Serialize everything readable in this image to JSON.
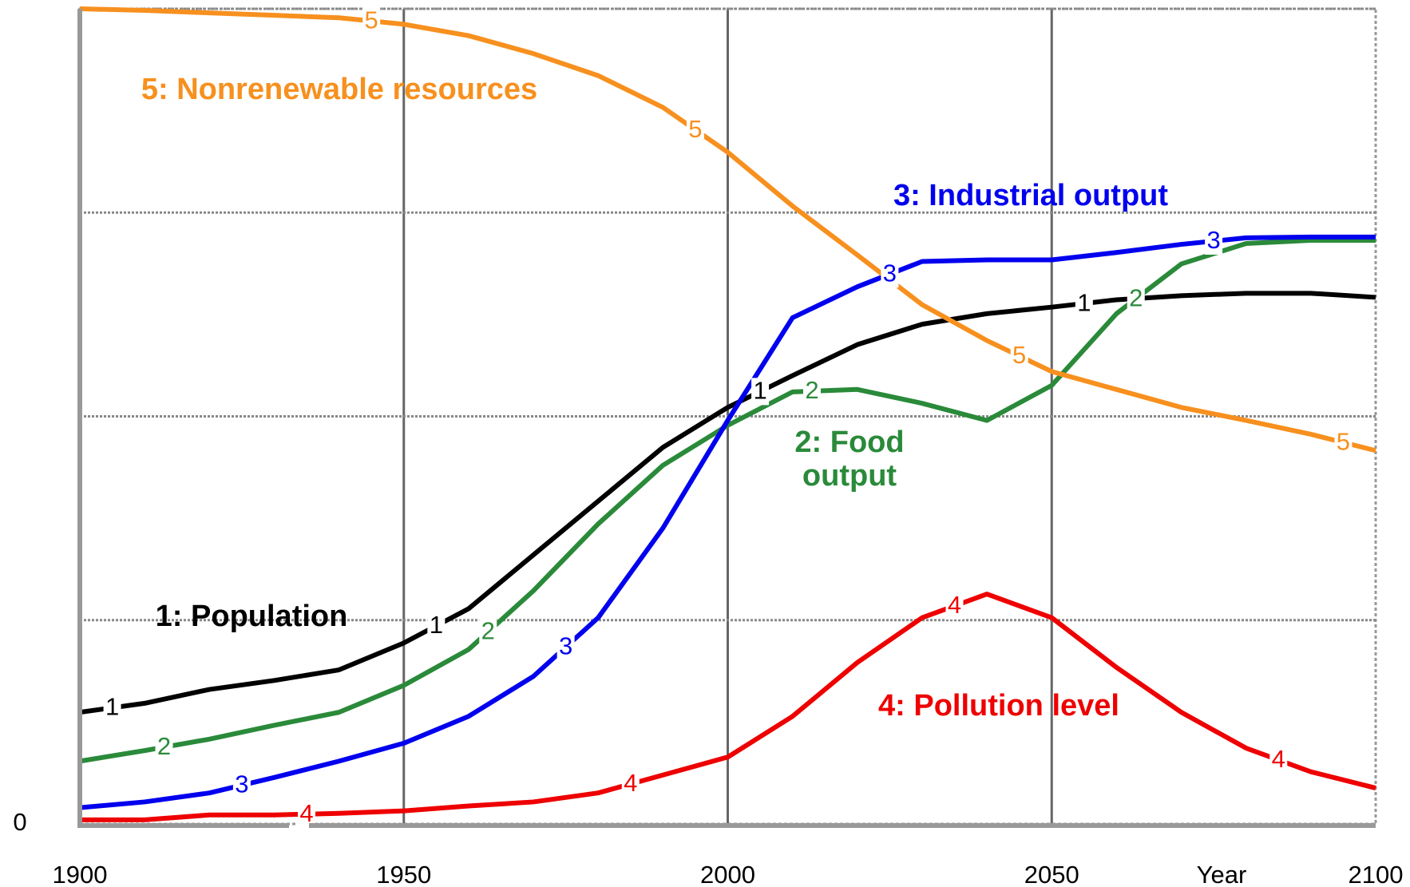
{
  "chart_data": {
    "type": "line",
    "xlabel": "Year",
    "x": [
      1900,
      1910,
      1920,
      1930,
      1940,
      1950,
      1960,
      1970,
      1980,
      1990,
      2000,
      2010,
      2020,
      2030,
      2040,
      2050,
      2060,
      2070,
      2080,
      2090,
      2100
    ],
    "xlim": [
      1900,
      2100
    ],
    "xticks": [
      1900,
      1950,
      2000,
      2050,
      2100
    ],
    "ylim": [
      0,
      100
    ],
    "yticks": [
      0
    ],
    "ygrid": [
      25,
      50,
      75,
      100
    ],
    "grid": true,
    "series": [
      {
        "name": "1: Population",
        "marker": "1",
        "color": "#000000",
        "values": [
          13.7,
          14.8,
          16.5,
          17.6,
          18.9,
          22.2,
          26.4,
          33,
          39.6,
          46.2,
          51.1,
          55,
          58.8,
          61.3,
          62.6,
          63.4,
          64.3,
          64.8,
          65.1,
          65.1,
          64.6
        ]
      },
      {
        "name": "2: Food output",
        "marker": "2",
        "color": "#2a8a3a",
        "values": [
          7.7,
          9,
          10.4,
          12.1,
          13.7,
          17,
          21.4,
          28.6,
          36.8,
          44,
          48.9,
          53,
          53.3,
          51.6,
          49.5,
          53.8,
          62.6,
          68.7,
          71.2,
          71.6,
          71.6
        ]
      },
      {
        "name": "3: Industrial output",
        "marker": "3",
        "color": "#0000ee",
        "values": [
          2,
          2.7,
          3.8,
          5.7,
          7.7,
          9.9,
          13.2,
          18.1,
          25.3,
          36.3,
          49.5,
          62.1,
          65.9,
          69,
          69.2,
          69.2,
          70.1,
          71.1,
          71.9,
          72,
          72
        ]
      },
      {
        "name": "4: Pollution level",
        "marker": "4",
        "color": "#ee0000",
        "values": [
          0.5,
          0.5,
          1.1,
          1.1,
          1.3,
          1.6,
          2.2,
          2.7,
          3.8,
          6,
          8.2,
          13.2,
          19.8,
          25.3,
          28.2,
          25.3,
          19.2,
          13.7,
          9.3,
          6.4,
          4.4
        ]
      },
      {
        "name": "5: Nonrenewable resources",
        "marker": "5",
        "color": "#f7901e",
        "values": [
          100,
          99.8,
          99.5,
          99.2,
          98.9,
          98.1,
          96.7,
          94.5,
          91.8,
          87.9,
          82.4,
          75.8,
          69.8,
          63.7,
          59.3,
          55.5,
          53.3,
          51.1,
          49.5,
          47.8,
          45.8
        ]
      }
    ]
  }
}
